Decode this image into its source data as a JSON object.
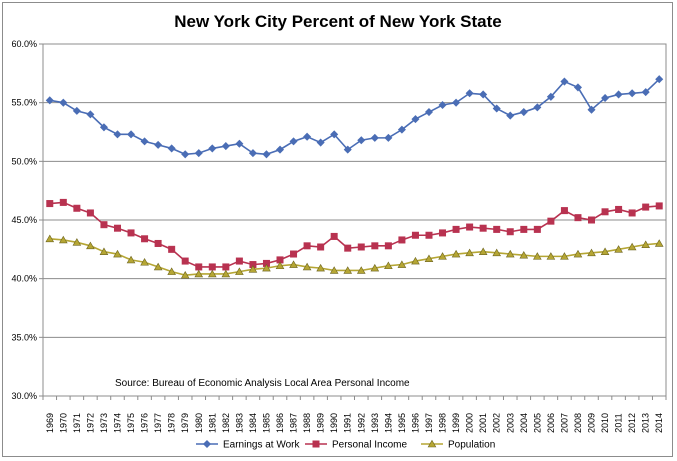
{
  "chart_data": {
    "type": "line",
    "title": "New York City Percent of New York State",
    "annotation": "Source:  Bureau of Economic Analysis Local Area Personal Income",
    "ylim": [
      30,
      60
    ],
    "yticks": [
      30,
      35,
      40,
      45,
      50,
      55,
      60
    ],
    "ytick_labels": [
      "30.0%",
      "35.0%",
      "40.0%",
      "45.0%",
      "50.0%",
      "55.0%",
      "60.0%"
    ],
    "grid": "horizontal",
    "legend_position": "bottom",
    "categories": [
      "1969",
      "1970",
      "1971",
      "1972",
      "1973",
      "1974",
      "1975",
      "1976",
      "1977",
      "1978",
      "1979",
      "1980",
      "1981",
      "1982",
      "1983",
      "1984",
      "1985",
      "1986",
      "1987",
      "1988",
      "1989",
      "1990",
      "1991",
      "1992",
      "1993",
      "1994",
      "1995",
      "1996",
      "1997",
      "1998",
      "1999",
      "2000",
      "2001",
      "2002",
      "2003",
      "2004",
      "2005",
      "2006",
      "2007",
      "2008",
      "2009",
      "2010",
      "2011",
      "2012",
      "2013",
      "2014"
    ],
    "series": [
      {
        "name": "Earnings at Work",
        "color": "#4a6db5",
        "marker": "diamond",
        "values": [
          55.2,
          55.0,
          54.3,
          54.0,
          52.9,
          52.3,
          52.3,
          51.7,
          51.4,
          51.1,
          50.6,
          50.7,
          51.1,
          51.3,
          51.5,
          50.7,
          50.6,
          51.0,
          51.7,
          52.1,
          51.6,
          52.3,
          51.0,
          51.8,
          52.0,
          52.0,
          52.7,
          53.6,
          54.2,
          54.8,
          55.0,
          55.8,
          55.7,
          54.5,
          53.9,
          54.2,
          54.6,
          55.5,
          56.8,
          56.3,
          54.4,
          55.4,
          55.7,
          55.8,
          55.9,
          57.0
        ]
      },
      {
        "name": "Personal Income",
        "color": "#b83250",
        "marker": "square",
        "values": [
          46.4,
          46.5,
          46.0,
          45.6,
          44.6,
          44.3,
          43.9,
          43.4,
          43.0,
          42.5,
          41.5,
          41.0,
          41.0,
          41.0,
          41.5,
          41.2,
          41.3,
          41.6,
          42.1,
          42.8,
          42.7,
          43.6,
          42.6,
          42.7,
          42.8,
          42.8,
          43.3,
          43.7,
          43.7,
          43.9,
          44.2,
          44.4,
          44.3,
          44.2,
          44.0,
          44.2,
          44.2,
          44.9,
          45.8,
          45.2,
          45.0,
          45.7,
          45.9,
          45.6,
          46.1,
          46.2
        ]
      },
      {
        "name": "Population",
        "color": "#b5a634",
        "marker": "triangle",
        "values": [
          43.4,
          43.3,
          43.1,
          42.8,
          42.3,
          42.1,
          41.6,
          41.4,
          41.0,
          40.6,
          40.3,
          40.4,
          40.4,
          40.4,
          40.6,
          40.8,
          40.9,
          41.1,
          41.2,
          41.0,
          40.9,
          40.7,
          40.7,
          40.7,
          40.9,
          41.1,
          41.2,
          41.5,
          41.7,
          41.9,
          42.1,
          42.2,
          42.3,
          42.2,
          42.1,
          42.0,
          41.9,
          41.9,
          41.9,
          42.1,
          42.2,
          42.3,
          42.5,
          42.7,
          42.9,
          43.0
        ]
      }
    ]
  }
}
